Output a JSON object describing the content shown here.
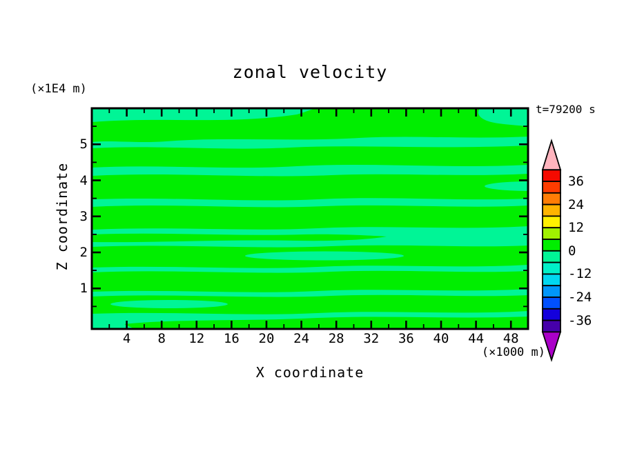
{
  "title": "zonal velocity",
  "annotations": {
    "y_axis_unit": "(×1E4 m)",
    "x_axis_unit": "(×1000 m)",
    "time": "t=79200 s"
  },
  "x_axis": {
    "label": "X coordinate",
    "range": [
      0,
      50
    ],
    "major_ticks": [
      4,
      8,
      12,
      16,
      20,
      24,
      28,
      32,
      36,
      40,
      44,
      48
    ],
    "minor_ticks": [
      2,
      6,
      10,
      14,
      18,
      22,
      26,
      30,
      34,
      38,
      42,
      46
    ]
  },
  "y_axis": {
    "label": "Z coordinate",
    "range": [
      0,
      6
    ],
    "major_ticks": [
      5,
      4,
      3,
      2,
      1
    ],
    "minor_ticks": [
      5.5,
      4.5,
      3.5,
      2.5,
      1.5,
      0.5
    ]
  },
  "colorbar": {
    "labels": [
      "36",
      "24",
      "12",
      "0",
      "-12",
      "-24",
      "-36"
    ],
    "boundary_values": [
      42,
      36,
      30,
      24,
      18,
      12,
      6,
      0,
      -6,
      -12,
      -18,
      -24,
      -30,
      -36,
      -42
    ],
    "segment_colors": [
      "#F50A00",
      "#FF3C00",
      "#FF7D05",
      "#FFB400",
      "#FFF000",
      "#A0F000",
      "#00EE00",
      "#00F596",
      "#00F0C8",
      "#00D7F0",
      "#0096FA",
      "#0050FF",
      "#1400DC",
      "#4600AA"
    ],
    "over_arrow_color": "#FFB4BE",
    "under_arrow_color": "#AA00C8"
  },
  "field_colors": {
    "positive_0_to_6": "#00EE00",
    "negative_0_to_minus6": "#00F596"
  },
  "chart_data": {
    "type": "filled_contour",
    "title": "zonal velocity",
    "time_annotation": "t=79200 s",
    "xlabel": "X coordinate",
    "x_unit": "(×1000 m)",
    "ylabel": "Z coordinate",
    "y_unit": "(×1E4 m)",
    "xlim": [
      0,
      50
    ],
    "ylim": [
      0,
      6
    ],
    "x_major_ticks": [
      4,
      8,
      12,
      16,
      20,
      24,
      28,
      32,
      36,
      40,
      44,
      48
    ],
    "y_major_ticks": [
      1,
      2,
      3,
      4,
      5
    ],
    "contour_interval": 6,
    "levels": [
      -42,
      -36,
      -30,
      -24,
      -18,
      -12,
      -6,
      0,
      6,
      12,
      18,
      24,
      30,
      36,
      42
    ],
    "colorbar_tick_labels": [
      36,
      24,
      12,
      0,
      -12,
      -24,
      -36
    ],
    "visible_value_range": [
      -6,
      6
    ],
    "fill_legend": {
      "0 to 6": "#00EE00",
      "-6 to 0": "#00F596"
    },
    "positive_band_z_centers": [
      5.37,
      4.68,
      3.86,
      3.0,
      2.42,
      1.92,
      1.23,
      0.58,
      0.05
    ],
    "description": "Weak zonal velocity field: wavy horizontal stripes of slightly positive (green) and slightly negative (spring green) velocity alternating with height; grid off; colorbar at right with over/under arrows."
  }
}
